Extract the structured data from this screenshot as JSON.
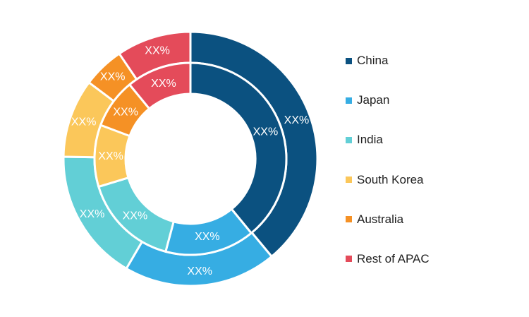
{
  "chart_data": {
    "type": "donut",
    "categories": [
      "China",
      "Japan",
      "India",
      "South Korea",
      "Australia",
      "Rest of APAC"
    ],
    "colors": [
      "#0b5180",
      "#36ade3",
      "#62cfd6",
      "#fbc75a",
      "#f59125",
      "#e44b5a"
    ],
    "series": [
      {
        "ring": "outer",
        "values": [
          37.0,
          18.5,
          16.0,
          9.5,
          5.0,
          9.0
        ],
        "labels": [
          "XX%",
          "XX%",
          "XX%",
          "XX%",
          "XX%",
          "XX%"
        ]
      },
      {
        "ring": "inner",
        "values": [
          37.5,
          14.5,
          15.5,
          10.0,
          8.0,
          10.5
        ],
        "labels": [
          "XX%",
          "XX%",
          "XX%",
          "XX%",
          "XX%",
          "XX%"
        ]
      }
    ],
    "legend": {
      "position": "right"
    }
  }
}
